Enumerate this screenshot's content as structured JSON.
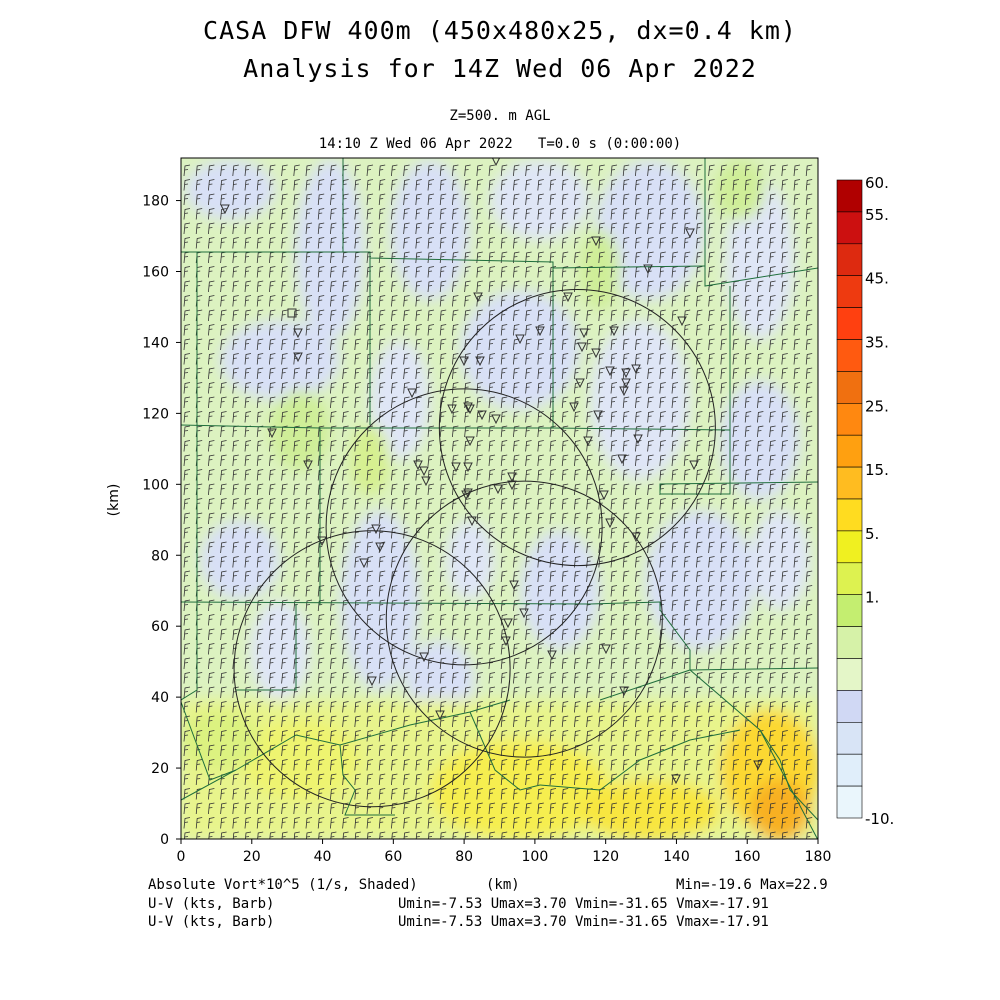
{
  "header": {
    "title_line1": "CASA DFW 400m (450x480x25, dx=0.4 km)",
    "title_line2": "Analysis for 14Z Wed 06 Apr 2022",
    "level": "Z=500. m AGL",
    "time": "14:10 Z Wed 06 Apr 2022   T=0.0 s (0:00:00)"
  },
  "axes": {
    "x_label": "(km)",
    "y_label": "(km)",
    "x_ticks": [
      "0",
      "20",
      "40",
      "60",
      "80",
      "100",
      "120",
      "140",
      "160",
      "180"
    ],
    "y_ticks": [
      "0",
      "20",
      "40",
      "60",
      "80",
      "100",
      "120",
      "140",
      "160",
      "180"
    ],
    "x_range": [
      0,
      180
    ],
    "y_range": [
      0,
      192
    ]
  },
  "colorbar": {
    "labels": [
      "60.",
      "55.",
      "45.",
      "35.",
      "25.",
      "15.",
      "5.",
      "1.",
      "-10."
    ],
    "colors": [
      "#b00000",
      "#cc1010",
      "#dd2a10",
      "#ee3a10",
      "#ff4010",
      "#ff5a10",
      "#f07010",
      "#ff8810",
      "#ffa010",
      "#ffbc20",
      "#ffdc20",
      "#f0f020",
      "#ddf250",
      "#c4ee70",
      "#d6f2a8",
      "#e4f6c8",
      "#d0d8f4",
      "#d8e4f6",
      "#e0eefa",
      "#eaf6fc"
    ]
  },
  "footer": {
    "field": "Absolute Vort*10^5 (1/s, Shaded)",
    "xunit": "(km)",
    "minmax": "Min=-19.6 Max=22.9",
    "barb1": "U-V (kts, Barb)",
    "barb2": "U-V (kts, Barb)",
    "stats1": "Umin=-7.53 Umax=3.70 Vmin=-31.65 Vmax=-17.91",
    "stats2": "Umin=-7.53 Umax=3.70 Vmin=-31.65 Vmax=-17.91"
  },
  "radar_circles_km": [
    {
      "x": 112,
      "y": 116,
      "r": 39
    },
    {
      "x": 80,
      "y": 88,
      "r": 39
    },
    {
      "x": 97,
      "y": 62,
      "r": 39
    },
    {
      "x": 54,
      "y": 48,
      "r": 39
    }
  ]
}
